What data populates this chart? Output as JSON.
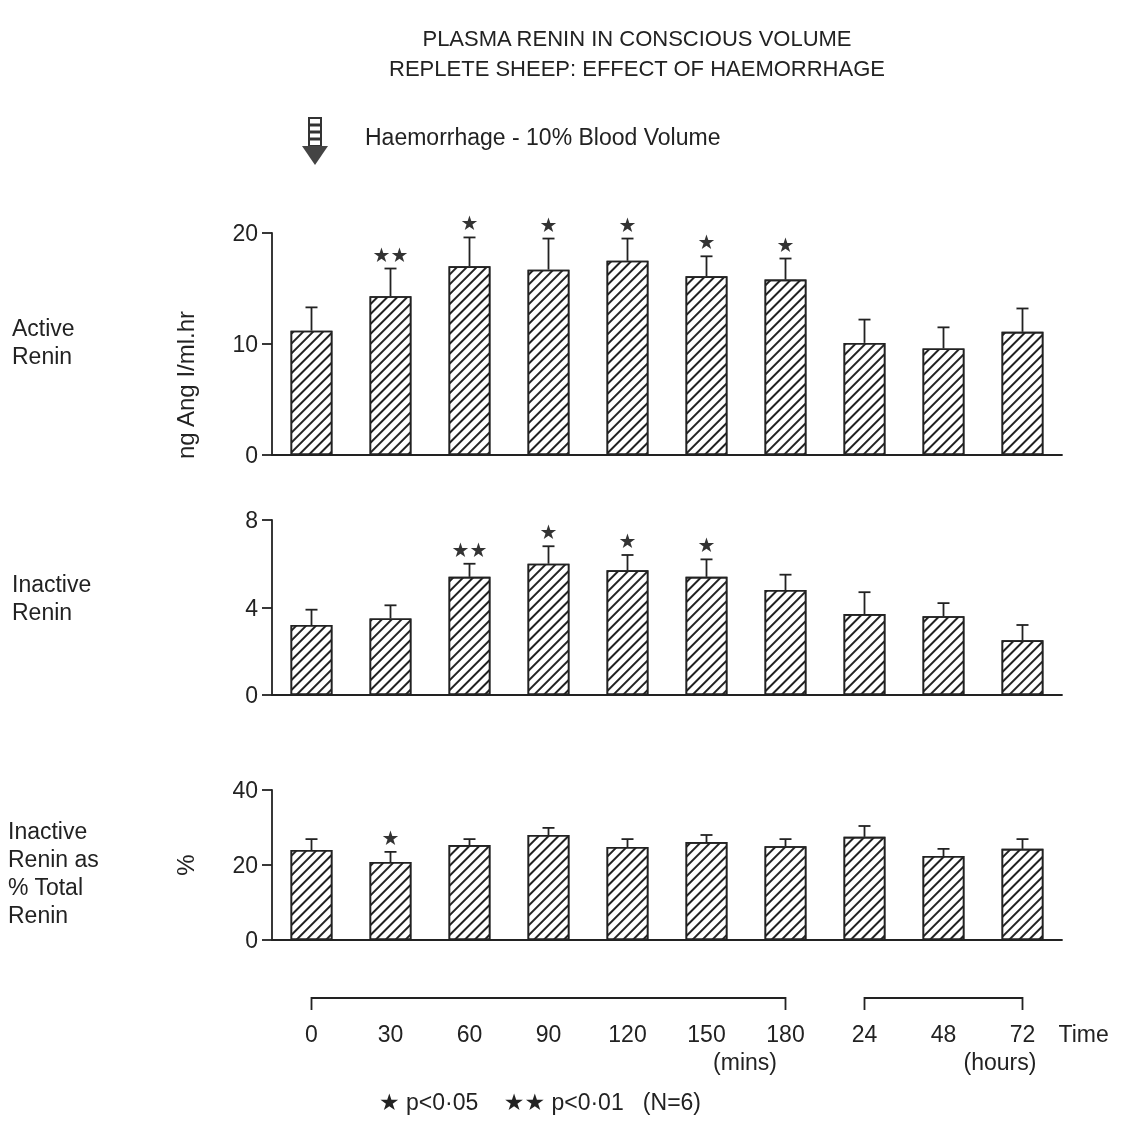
{
  "chart_data": [
    {
      "type": "bar",
      "title": "PLASMA RENIN IN CONSCIOUS VOLUME\nREPLETE SHEEP: EFFECT OF HAEMORRHAGE",
      "ylabel": "ng Ang I/ml.hr",
      "categories": [
        "0",
        "30",
        "60",
        "90",
        "120",
        "150",
        "180",
        "24",
        "48",
        "72"
      ],
      "values": [
        11.2,
        14.3,
        17.0,
        16.7,
        17.5,
        16.1,
        15.8,
        10.1,
        9.6,
        11.1
      ],
      "errors": [
        [
          11.2,
          13.3
        ],
        [
          14.3,
          16.8
        ],
        [
          17.0,
          19.6
        ],
        [
          16.7,
          19.5
        ],
        [
          17.5,
          19.5
        ],
        [
          16.1,
          17.9
        ],
        [
          15.8,
          17.7
        ],
        [
          10.1,
          12.2
        ],
        [
          9.6,
          11.5
        ],
        [
          11.1,
          13.2
        ]
      ],
      "color": "#ffffff",
      "ylim": [
        0,
        20
      ],
      "yticks": [
        0,
        10,
        20
      ],
      "grid": false,
      "tick_labels": "y",
      "annotations": [
        "Haemorrhage - 10% Blood Volume",
        "Active\nRenin",
        {
          "text": "★★",
          "x": "30",
          "y": 16.8
        },
        {
          "text": "★",
          "x": "60",
          "y": 19.6
        },
        {
          "text": "★",
          "x": "90",
          "y": 19.5
        },
        {
          "text": "★",
          "x": "120",
          "y": 19.5
        },
        {
          "text": "★",
          "x": "150",
          "y": 17.9
        },
        {
          "text": "★",
          "x": "180",
          "y": 17.7
        }
      ]
    },
    {
      "type": "bar",
      "categories": [
        "0",
        "30",
        "60",
        "90",
        "120",
        "150",
        "180",
        "24",
        "48",
        "72"
      ],
      "values": [
        3.2,
        3.5,
        5.4,
        6.0,
        5.7,
        5.4,
        4.8,
        3.7,
        3.6,
        2.5
      ],
      "errors": [
        [
          3.2,
          3.9
        ],
        [
          3.5,
          4.1
        ],
        [
          5.4,
          6.0
        ],
        [
          6.0,
          6.8
        ],
        [
          5.7,
          6.4
        ],
        [
          5.4,
          6.2
        ],
        [
          4.8,
          5.5
        ],
        [
          3.7,
          4.7
        ],
        [
          3.6,
          4.2
        ],
        [
          2.5,
          3.2
        ]
      ],
      "color": "#ffffff",
      "ylim": [
        0,
        8
      ],
      "yticks": [
        0,
        4,
        8
      ],
      "grid": false,
      "tick_labels": "y",
      "annotations": [
        "Inactive\nRenin",
        {
          "text": "★★",
          "x": "60",
          "y": 6.0
        },
        {
          "text": "★",
          "x": "90",
          "y": 6.8
        },
        {
          "text": "★",
          "x": "120",
          "y": 6.4
        },
        {
          "text": "★",
          "x": "150",
          "y": 6.2
        }
      ]
    },
    {
      "type": "bar",
      "ylabel": "%",
      "xlabel": "Time",
      "categories": [
        "0",
        "30",
        "60",
        "90",
        "120",
        "150",
        "180",
        "24",
        "48",
        "72"
      ],
      "values": [
        24,
        20.8,
        25.3,
        28,
        24.8,
        26.1,
        25,
        27.5,
        22.4,
        24.3
      ],
      "errors": [
        [
          24,
          26.9
        ],
        [
          20.8,
          23.5
        ],
        [
          25.3,
          26.9
        ],
        [
          28,
          29.9
        ],
        [
          24.8,
          26.9
        ],
        [
          26.1,
          28
        ],
        [
          25,
          26.9
        ],
        [
          27.5,
          30.4
        ],
        [
          22.4,
          24.3
        ],
        [
          24.3,
          26.9
        ]
      ],
      "color": "#ffffff",
      "ylim": [
        0,
        40
      ],
      "yticks": [
        0,
        20,
        40
      ],
      "grid": false,
      "annotations": [
        "Inactive\nRenin as\n% Total\nRenin",
        "(mins)",
        "(hours)",
        "★ p<0·05    ★★ p<0·01   (N=6)",
        {
          "text": "★",
          "x": "30",
          "y": 23.5
        }
      ]
    }
  ]
}
